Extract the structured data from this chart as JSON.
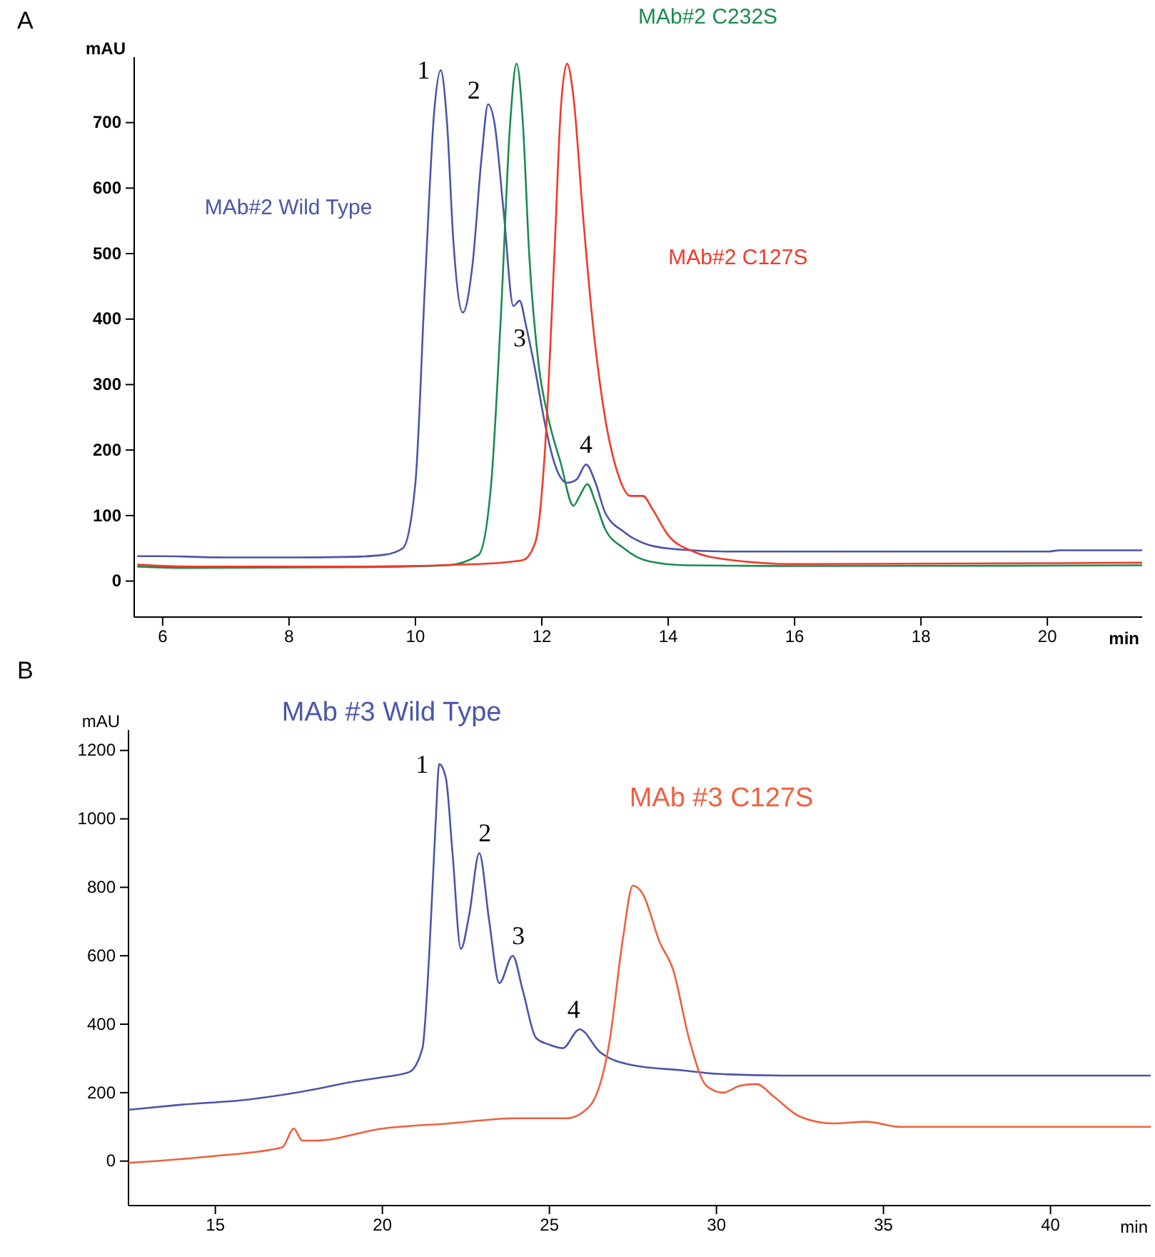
{
  "chart_data": [
    {
      "type": "line",
      "title": "A",
      "xlabel": "min",
      "ylabel": "mAU",
      "xlim": [
        5.55,
        21.5
      ],
      "xticks": [
        6,
        8,
        10,
        12,
        14,
        16,
        18,
        20
      ],
      "ylim": [
        -55,
        800
      ],
      "yticks": [
        0,
        100,
        200,
        300,
        400,
        500,
        600,
        700
      ],
      "grid": false,
      "legend": false,
      "marker": "none",
      "series": [
        {
          "name": "MAb#2 Wild Type",
          "color": "#4a56a8",
          "x": [
            5.6,
            6,
            7,
            8,
            9,
            9.5,
            9.8,
            10.0,
            10.15,
            10.3,
            10.4,
            10.5,
            10.6,
            10.75,
            10.9,
            11.05,
            11.15,
            11.25,
            11.4,
            11.55,
            11.65,
            11.75,
            11.9,
            12.05,
            12.2,
            12.4,
            12.55,
            12.7,
            12.85,
            13.0,
            13.3,
            13.7,
            14.2,
            15,
            17.5,
            20,
            20.2,
            21.5
          ],
          "values": [
            38,
            38,
            36,
            36,
            37,
            40,
            50,
            150,
            450,
            720,
            780,
            700,
            520,
            410,
            480,
            650,
            728,
            700,
            560,
            420,
            428,
            390,
            320,
            240,
            180,
            150,
            155,
            178,
            150,
            105,
            75,
            55,
            48,
            45,
            45,
            45,
            47,
            47
          ]
        },
        {
          "name": "MAb#2 C232S",
          "color": "#1a8c4e",
          "x": [
            5.6,
            6.4,
            9,
            10.5,
            11.0,
            11.2,
            11.35,
            11.5,
            11.6,
            11.7,
            11.8,
            11.95,
            12.1,
            12.3,
            12.5,
            12.6,
            12.72,
            12.85,
            13.0,
            13.3,
            13.7,
            14.3,
            16,
            21.5
          ],
          "values": [
            22,
            20,
            21,
            24,
            40,
            150,
            400,
            700,
            790,
            700,
            500,
            330,
            250,
            180,
            115,
            130,
            148,
            120,
            80,
            50,
            30,
            24,
            23,
            24
          ]
        },
        {
          "name": "MAb#2 C127S",
          "color": "#f03a2a",
          "x": [
            5.6,
            6.5,
            9,
            11,
            11.7,
            11.9,
            12.05,
            12.2,
            12.3,
            12.4,
            12.5,
            12.65,
            12.8,
            13.0,
            13.2,
            13.4,
            13.6,
            13.75,
            14.0,
            14.4,
            15,
            16,
            21.5
          ],
          "values": [
            25,
            22,
            22,
            26,
            32,
            60,
            200,
            500,
            720,
            790,
            740,
            560,
            400,
            250,
            165,
            130,
            130,
            110,
            70,
            45,
            32,
            26,
            28
          ]
        }
      ],
      "annotations": [
        {
          "text": "1",
          "x": 10.4,
          "y": 780
        },
        {
          "text": "2",
          "x": 11.15,
          "y": 728
        },
        {
          "text": "3",
          "x": 11.65,
          "y": 428
        },
        {
          "text": "4",
          "x": 12.7,
          "y": 178
        }
      ]
    },
    {
      "type": "line",
      "title": "B",
      "xlabel": "min",
      "ylabel": "mAU",
      "xlim": [
        12.4,
        43
      ],
      "xticks": [
        15,
        20,
        25,
        30,
        35,
        40
      ],
      "ylim": [
        -130,
        1260
      ],
      "yticks": [
        0,
        200,
        400,
        600,
        800,
        1000,
        1200
      ],
      "grid": false,
      "legend": false,
      "marker": "none",
      "series": [
        {
          "name": "MAb #3 Wild Type",
          "color": "#4a56a8",
          "x": [
            12.4,
            14,
            16,
            18,
            19,
            20,
            20.8,
            21.2,
            21.4,
            21.6,
            21.7,
            21.9,
            22.1,
            22.35,
            22.6,
            22.9,
            23.2,
            23.5,
            23.9,
            24.2,
            24.6,
            25.0,
            25.4,
            25.9,
            26.5,
            27.5,
            29,
            30,
            32,
            43
          ],
          "values": [
            150,
            165,
            180,
            210,
            230,
            245,
            260,
            330,
            600,
            1000,
            1160,
            1120,
            900,
            620,
            720,
            900,
            700,
            520,
            600,
            500,
            360,
            340,
            330,
            385,
            320,
            280,
            265,
            255,
            250,
            250
          ]
        },
        {
          "name": "MAb #3 C127S",
          "color": "#f0603e",
          "x": [
            12.4,
            15,
            17,
            17.35,
            17.6,
            18,
            20,
            22,
            24,
            25.5,
            26.2,
            26.8,
            27.2,
            27.5,
            27.8,
            28.3,
            28.7,
            29.2,
            29.7,
            30.2,
            30.7,
            31.2,
            31.7,
            32.5,
            33.5,
            34.5,
            35.5,
            43
          ],
          "values": [
            -5,
            15,
            40,
            95,
            60,
            60,
            95,
            110,
            125,
            125,
            160,
            350,
            650,
            805,
            780,
            640,
            560,
            350,
            220,
            200,
            220,
            225,
            190,
            130,
            110,
            115,
            100,
            100
          ]
        }
      ],
      "annotations": [
        {
          "text": "1",
          "x": 21.7,
          "y": 1160
        },
        {
          "text": "2",
          "x": 22.9,
          "y": 900
        },
        {
          "text": "3",
          "x": 23.9,
          "y": 600
        },
        {
          "text": "4",
          "x": 25.9,
          "y": 385
        }
      ]
    }
  ]
}
